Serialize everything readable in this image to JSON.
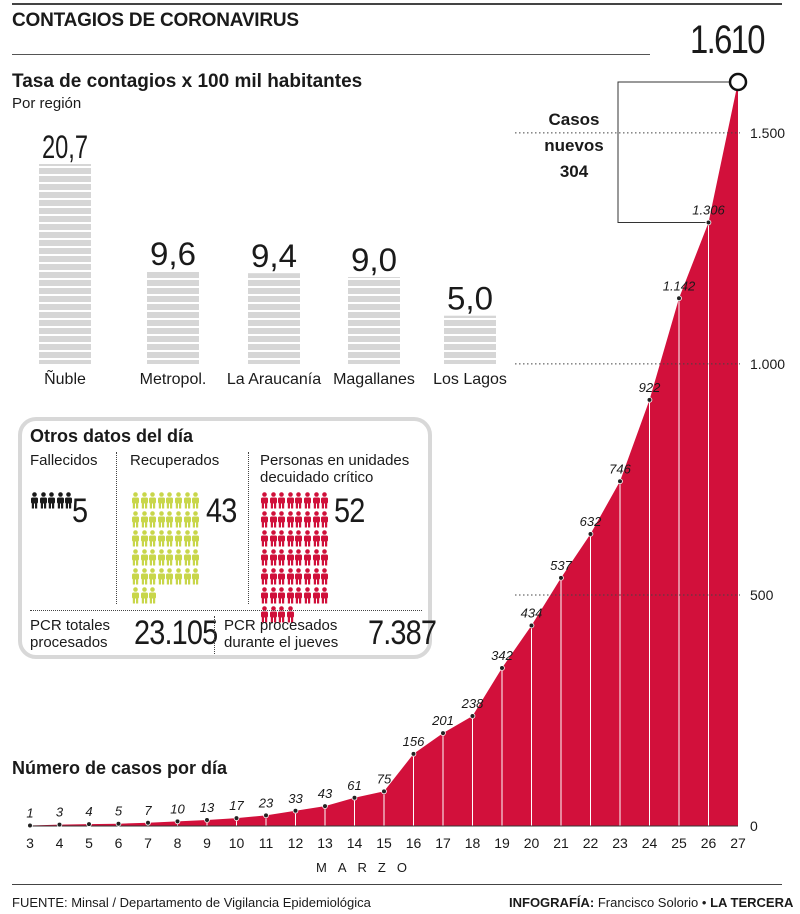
{
  "header": {
    "title": "CONTAGIOS DE CORONAVIRUS",
    "peak_value": "1.610",
    "new_cases_label": "Casos nuevos",
    "new_cases_value": "304"
  },
  "regions_section": {
    "title": "Tasa de contagios x 100 mil habitantes",
    "subtitle": "Por región"
  },
  "other_data": {
    "title": "Otros datos del día",
    "deceased_label": "Fallecidos",
    "deceased_value": "5",
    "recovered_label": "Recuperados",
    "recovered_value": "43",
    "icu_label_line1": "Personas en unidades",
    "icu_label_line2": "decuidado crítico",
    "icu_value": "52",
    "pcr_total_label_line1": "PCR totales",
    "pcr_total_label_line2": "procesados",
    "pcr_total_value": "23.105",
    "pcr_thursday_label_line1": "PCR procesados",
    "pcr_thursday_label_line2": "durante el jueves",
    "pcr_thursday_value": "7.387",
    "colors": {
      "deceased": "#1a1a1a",
      "recovered": "#c8d64a",
      "icu": "#d0103a"
    }
  },
  "cases_section": {
    "title": "Número de casos por día",
    "month_label": "MARZO"
  },
  "footer": {
    "source": "FUENTE: Minsal / Departamento de Vigilancia Epidemiológica",
    "credit_prefix": "INFOGRAFÍA:",
    "credit_author": "Francisco Solorio •",
    "credit_brand": "LA TERCERA"
  },
  "chart_data": [
    {
      "type": "bar",
      "title": "Tasa de contagios x 100 mil habitantes",
      "subtitle": "Por región",
      "categories": [
        "Ñuble",
        "Metropol.",
        "La Araucanía",
        "Magallanes",
        "Los Lagos"
      ],
      "values": [
        20.7,
        9.6,
        9.4,
        9.0,
        5.0
      ],
      "value_labels": [
        "20,7",
        "9,6",
        "9,4",
        "9,0",
        "5,0"
      ],
      "colors": {
        "bar": "#d6d6d6",
        "stripe": "#ffffff"
      }
    },
    {
      "type": "area",
      "title": "Número de casos por día",
      "x": [
        "3",
        "4",
        "5",
        "6",
        "7",
        "8",
        "9",
        "10",
        "11",
        "12",
        "13",
        "14",
        "15",
        "16",
        "17",
        "18",
        "19",
        "20",
        "21",
        "22",
        "23",
        "24",
        "25",
        "26",
        "27"
      ],
      "values": [
        1,
        3,
        4,
        5,
        7,
        10,
        13,
        17,
        23,
        33,
        43,
        61,
        75,
        156,
        201,
        238,
        342,
        434,
        537,
        632,
        746,
        922,
        1142,
        1306,
        1610
      ],
      "value_labels": [
        "1",
        "3",
        "4",
        "5",
        "7",
        "10",
        "13",
        "17",
        "23",
        "33",
        "43",
        "61",
        "75",
        "156",
        "201",
        "238",
        "342",
        "434",
        "537",
        "632",
        "746",
        "922",
        "1.142",
        "1.306",
        "1.610"
      ],
      "y_ticks": [
        0,
        500,
        1000,
        1500
      ],
      "y_tick_labels": [
        "0",
        "500",
        "1.000",
        "1.500"
      ],
      "ylim": [
        0,
        1610
      ],
      "xlabel": "MARZO",
      "colors": {
        "area": "#d2103b",
        "separator": "#ffffff"
      }
    }
  ]
}
